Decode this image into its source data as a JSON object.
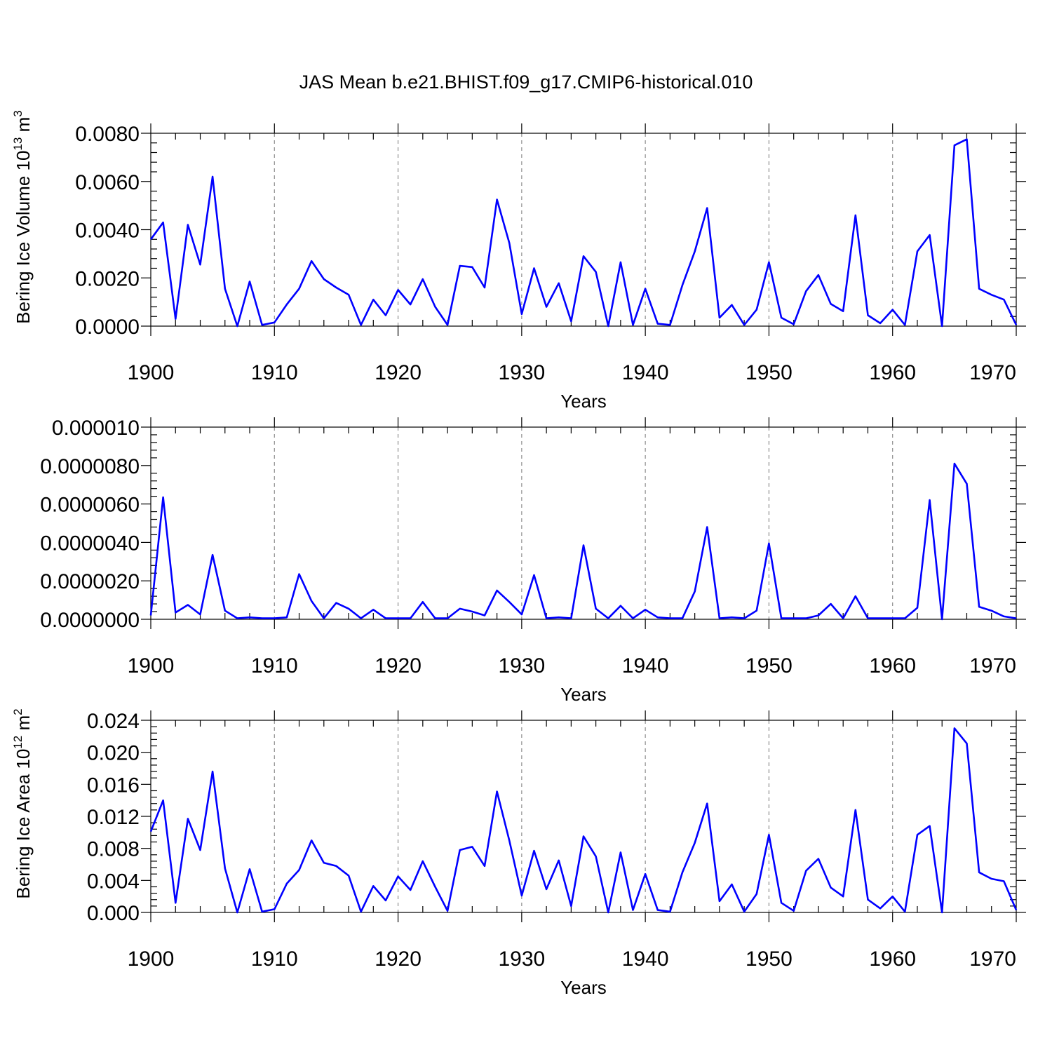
{
  "title": "JAS Mean b.e21.BHIST.f09_g17.CMIP6-historical.010",
  "colors": {
    "series": "#0000ff",
    "grid": "#8c8c8c",
    "frame": "#000000"
  },
  "chart_data": [
    {
      "type": "line",
      "ylabel_main": "Bering Ice Volume 10",
      "ylabel_exp": "13",
      "ylabel_unit": " m",
      "ylabel_unit_exp": "3",
      "xlabel": "Years",
      "xlim": [
        1900,
        1970
      ],
      "ylim": [
        0,
        0.008
      ],
      "xticks": [
        1900,
        1910,
        1920,
        1930,
        1940,
        1950,
        1960,
        1970
      ],
      "xtick_labels": [
        "1900",
        "1910",
        "1920",
        "1930",
        "1940",
        "1950",
        "1960",
        "1970"
      ],
      "yticks": [
        0,
        0.002,
        0.004,
        0.006,
        0.008
      ],
      "ytick_labels": [
        "0.0000",
        "0.0020",
        "0.0040",
        "0.0060",
        "0.0080"
      ],
      "grid": "vertical dashed at major x ticks",
      "x": [
        1900,
        1901,
        1902,
        1903,
        1904,
        1905,
        1906,
        1907,
        1908,
        1909,
        1910,
        1911,
        1912,
        1913,
        1914,
        1915,
        1916,
        1917,
        1918,
        1919,
        1920,
        1921,
        1922,
        1923,
        1924,
        1925,
        1926,
        1927,
        1928,
        1929,
        1930,
        1931,
        1932,
        1933,
        1934,
        1935,
        1936,
        1937,
        1938,
        1939,
        1940,
        1941,
        1942,
        1943,
        1944,
        1945,
        1946,
        1947,
        1948,
        1949,
        1950,
        1951,
        1952,
        1953,
        1954,
        1955,
        1956,
        1957,
        1958,
        1959,
        1960,
        1961,
        1962,
        1963,
        1964,
        1965,
        1966,
        1967,
        1968,
        1969,
        1970
      ],
      "values": [
        0.0036,
        0.0043,
        0.0003,
        0.0042,
        0.00255,
        0.0062,
        0.00155,
        0.0,
        0.00185,
        5e-05,
        0.00015,
        0.0009,
        0.00155,
        0.0027,
        0.00195,
        0.0016,
        0.0013,
        5e-05,
        0.0011,
        0.00045,
        0.0015,
        0.0009,
        0.00195,
        0.0008,
        5e-05,
        0.0025,
        0.00245,
        0.0016,
        0.00525,
        0.00345,
        0.0005,
        0.0024,
        0.0008,
        0.00178,
        0.0002,
        0.0029,
        0.00225,
        0.0,
        0.00265,
        5e-05,
        0.00155,
        0.0001,
        5e-05,
        0.0017,
        0.0031,
        0.0049,
        0.00035,
        0.00088,
        5e-05,
        0.00068,
        0.00265,
        0.00035,
        8e-05,
        0.00145,
        0.00212,
        0.00092,
        0.00062,
        0.0046,
        0.00045,
        0.00012,
        0.00068,
        5e-05,
        0.0031,
        0.00378,
        0.0,
        0.0075,
        0.00775,
        0.00155,
        0.0013,
        0.0011,
        5e-05
      ]
    },
    {
      "type": "line",
      "ylabel_main": "",
      "xlabel": "Years",
      "xlim": [
        1900,
        1970
      ],
      "ylim": [
        0,
        1e-05
      ],
      "xticks": [
        1900,
        1910,
        1920,
        1930,
        1940,
        1950,
        1960,
        1970
      ],
      "xtick_labels": [
        "1900",
        "1910",
        "1920",
        "1930",
        "1940",
        "1950",
        "1960",
        "1970"
      ],
      "yticks": [
        0,
        2e-06,
        4e-06,
        6e-06,
        8e-06,
        1e-05
      ],
      "ytick_labels": [
        "0.0000000",
        "0.0000020",
        "0.0000040",
        "0.0000060",
        "0.0000080",
        "0.000010"
      ],
      "grid": "vertical dashed at major x ticks",
      "x": [
        1900,
        1901,
        1902,
        1903,
        1904,
        1905,
        1906,
        1907,
        1908,
        1909,
        1910,
        1911,
        1912,
        1913,
        1914,
        1915,
        1916,
        1917,
        1918,
        1919,
        1920,
        1921,
        1922,
        1923,
        1924,
        1925,
        1926,
        1927,
        1928,
        1929,
        1930,
        1931,
        1932,
        1933,
        1934,
        1935,
        1936,
        1937,
        1938,
        1939,
        1940,
        1941,
        1942,
        1943,
        1944,
        1945,
        1946,
        1947,
        1948,
        1949,
        1950,
        1951,
        1952,
        1953,
        1954,
        1955,
        1956,
        1957,
        1958,
        1959,
        1960,
        1961,
        1962,
        1963,
        1964,
        1965,
        1966,
        1967,
        1968,
        1969,
        1970
      ],
      "values": [
        2e-07,
        6.35e-06,
        3.5e-07,
        7.5e-07,
        2.5e-07,
        3.35e-06,
        4.5e-07,
        5e-08,
        1e-07,
        5e-08,
        5e-08,
        1e-07,
        2.35e-06,
        9.5e-07,
        5e-08,
        8.5e-07,
        5.5e-07,
        5e-08,
        5e-07,
        5e-08,
        5e-08,
        5e-08,
        9e-07,
        5e-08,
        5e-08,
        5.5e-07,
        4e-07,
        2e-07,
        1.5e-06,
        9e-07,
        2.5e-07,
        2.3e-06,
        5e-08,
        1e-07,
        5e-08,
        3.85e-06,
        5.5e-07,
        5e-08,
        7e-07,
        5e-08,
        5e-07,
        1e-07,
        5e-08,
        5e-08,
        1.45e-06,
        4.8e-06,
        5e-08,
        1e-07,
        5e-08,
        4.5e-07,
        3.95e-06,
        5e-08,
        5e-08,
        5e-08,
        2e-07,
        8e-07,
        5e-08,
        1.2e-06,
        5e-08,
        5e-08,
        5e-08,
        5e-08,
        6e-07,
        6.2e-06,
        0.0,
        8.1e-06,
        7.05e-06,
        6.5e-07,
        4.5e-07,
        1.5e-07,
        5e-08
      ]
    },
    {
      "type": "line",
      "ylabel_main": "Bering Ice Area 10",
      "ylabel_exp": "12",
      "ylabel_unit": " m",
      "ylabel_unit_exp": "2",
      "xlabel": "Years",
      "xlim": [
        1900,
        1970
      ],
      "ylim": [
        0,
        0.024
      ],
      "xticks": [
        1900,
        1910,
        1920,
        1930,
        1940,
        1950,
        1960,
        1970
      ],
      "xtick_labels": [
        "1900",
        "1910",
        "1920",
        "1930",
        "1940",
        "1950",
        "1960",
        "1970"
      ],
      "yticks": [
        0,
        0.004,
        0.008,
        0.012,
        0.016,
        0.02,
        0.024
      ],
      "ytick_labels": [
        "0.000",
        "0.004",
        "0.008",
        "0.012",
        "0.016",
        "0.020",
        "0.024"
      ],
      "grid": "vertical dashed at major x ticks",
      "x": [
        1900,
        1901,
        1902,
        1903,
        1904,
        1905,
        1906,
        1907,
        1908,
        1909,
        1910,
        1911,
        1912,
        1913,
        1914,
        1915,
        1916,
        1917,
        1918,
        1919,
        1920,
        1921,
        1922,
        1923,
        1924,
        1925,
        1926,
        1927,
        1928,
        1929,
        1930,
        1931,
        1932,
        1933,
        1934,
        1935,
        1936,
        1937,
        1938,
        1939,
        1940,
        1941,
        1942,
        1943,
        1944,
        1945,
        1946,
        1947,
        1948,
        1949,
        1950,
        1951,
        1952,
        1953,
        1954,
        1955,
        1956,
        1957,
        1958,
        1959,
        1960,
        1961,
        1962,
        1963,
        1964,
        1965,
        1966,
        1967,
        1968,
        1969,
        1970
      ],
      "values": [
        0.0101,
        0.014,
        0.0012,
        0.0117,
        0.0078,
        0.0176,
        0.0055,
        0.0,
        0.0054,
        0.0001,
        0.0004,
        0.0036,
        0.0053,
        0.009,
        0.0062,
        0.0058,
        0.0046,
        0.0001,
        0.0033,
        0.0015,
        0.0045,
        0.0028,
        0.0064,
        0.0032,
        0.0002,
        0.0078,
        0.0082,
        0.0058,
        0.0151,
        0.009,
        0.0021,
        0.0077,
        0.0029,
        0.0065,
        0.0008,
        0.0095,
        0.007,
        0.0,
        0.0075,
        0.0003,
        0.0048,
        0.0003,
        0.0001,
        0.005,
        0.0087,
        0.0136,
        0.0014,
        0.0035,
        0.0001,
        0.0023,
        0.0097,
        0.0012,
        0.0002,
        0.0052,
        0.0067,
        0.0031,
        0.002,
        0.0128,
        0.0016,
        0.0005,
        0.002,
        0.0001,
        0.0097,
        0.0108,
        0.0,
        0.023,
        0.0211,
        0.005,
        0.0042,
        0.0039,
        0.0003
      ]
    }
  ]
}
